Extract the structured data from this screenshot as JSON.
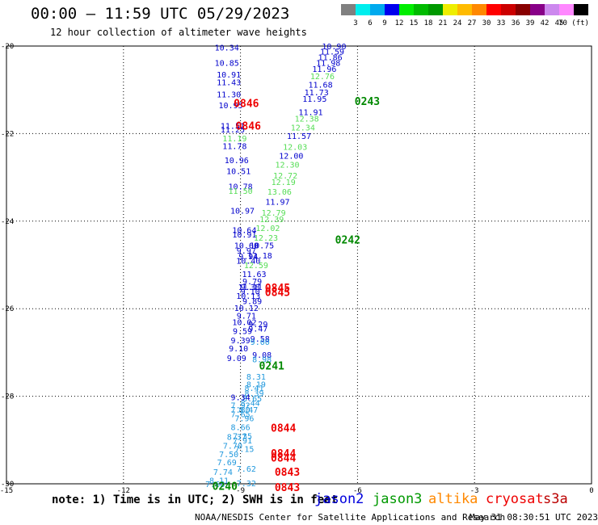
{
  "header": {
    "title": "00:00 – 11:59 UTC 05/29/2023",
    "subtitle": "12 hour collection of altimeter wave heights"
  },
  "colorbar": {
    "labels": [
      "3",
      "6",
      "9",
      "12",
      "15",
      "18",
      "21",
      "24",
      "27",
      "30",
      "33",
      "36",
      "39",
      "42",
      "45",
      "70 (ft)"
    ],
    "colors": [
      "#808080",
      "#00eeee",
      "#00aaee",
      "#0000ee",
      "#00ee00",
      "#00bb00",
      "#009900",
      "#eeee00",
      "#ffbb00",
      "#ff8800",
      "#ff0000",
      "#cc0000",
      "#880000",
      "#880088",
      "#cc88ee",
      "#ff88ff",
      "#000000"
    ]
  },
  "footer": {
    "note": "note: 1) Time is in UTC; 2) SWH is in feet",
    "missions": [
      {
        "name": "jason2",
        "color": "#0000dd"
      },
      {
        "name": "jason3",
        "color": "#009900"
      },
      {
        "name": "altika",
        "color": "#ff8800"
      },
      {
        "name": "cryosat",
        "color": "#ee0000"
      },
      {
        "name": "s3a",
        "color": "#bb0000"
      }
    ],
    "credit": "NOAA/NESDIS Center for Satellite Applications and Research",
    "timestamp": "May 31 08:30:51 UTC 2023"
  },
  "chart_data": {
    "type": "scatter",
    "xlim": [
      -15,
      0
    ],
    "ylim": [
      -30,
      -20
    ],
    "x_ticks": [
      "-15",
      "-12",
      "-9",
      "-6",
      "-3",
      "0"
    ],
    "y_ticks": [
      "-20",
      "-22",
      "-24",
      "-26",
      "-28",
      "-30"
    ],
    "grid": true,
    "colors": {
      "blue": "#0000cc",
      "green": "#55dd55",
      "cyan": "#2299dd",
      "darkgreen": "#008800",
      "red": "#ee0000"
    },
    "points": [
      {
        "x": -9.35,
        "y": -20.03,
        "label": "10.34",
        "color": "blue"
      },
      {
        "x": -9.35,
        "y": -20.38,
        "label": "10.85",
        "color": "blue"
      },
      {
        "x": -9.3,
        "y": -20.65,
        "label": "10.91",
        "color": "blue"
      },
      {
        "x": -9.3,
        "y": -20.82,
        "label": "11.43",
        "color": "blue"
      },
      {
        "x": -9.3,
        "y": -21.1,
        "label": "11.30",
        "color": "blue"
      },
      {
        "x": -9.25,
        "y": -21.35,
        "label": "10.95",
        "color": "blue"
      },
      {
        "x": -9.2,
        "y": -21.82,
        "label": "11.51",
        "color": "blue"
      },
      {
        "x": -9.2,
        "y": -21.9,
        "label": "11.25",
        "color": "blue"
      },
      {
        "x": -9.15,
        "y": -22.1,
        "label": "11.19",
        "color": "green"
      },
      {
        "x": -9.15,
        "y": -22.28,
        "label": "11.78",
        "color": "blue"
      },
      {
        "x": -9.1,
        "y": -22.6,
        "label": "10.96",
        "color": "blue"
      },
      {
        "x": -9.05,
        "y": -22.85,
        "label": "10.51",
        "color": "blue"
      },
      {
        "x": -9.0,
        "y": -23.2,
        "label": "10.78",
        "color": "blue"
      },
      {
        "x": -9.0,
        "y": -23.3,
        "label": "11.50",
        "color": "green"
      },
      {
        "x": -8.95,
        "y": -23.75,
        "label": "10.97",
        "color": "blue"
      },
      {
        "x": -8.9,
        "y": -24.2,
        "label": "10.64",
        "color": "blue"
      },
      {
        "x": -8.9,
        "y": -24.3,
        "label": "10.91",
        "color": "blue"
      },
      {
        "x": -8.85,
        "y": -24.55,
        "label": "10.60",
        "color": "blue"
      },
      {
        "x": -8.85,
        "y": -24.67,
        "label": "9.97",
        "color": "blue"
      },
      {
        "x": -8.8,
        "y": -24.8,
        "label": "9.94",
        "color": "blue"
      },
      {
        "x": -8.8,
        "y": -24.9,
        "label": "10.40",
        "color": "blue"
      },
      {
        "x": -8.75,
        "y": -25.5,
        "label": "9.38",
        "color": "blue"
      },
      {
        "x": -8.75,
        "y": -25.6,
        "label": "9.10",
        "color": "blue"
      },
      {
        "x": -8.7,
        "y": -25.82,
        "label": "9.89",
        "color": "blue"
      },
      {
        "x": -8.55,
        "y": -26.35,
        "label": "9.29",
        "color": "blue"
      },
      {
        "x": -8.55,
        "y": -26.45,
        "label": "9.47",
        "color": "blue"
      },
      {
        "x": -8.5,
        "y": -26.68,
        "label": "9.58",
        "color": "blue"
      },
      {
        "x": -8.5,
        "y": -26.75,
        "label": "9.00",
        "color": "cyan"
      },
      {
        "x": -8.45,
        "y": -27.05,
        "label": "9.08",
        "color": "blue"
      },
      {
        "x": -8.45,
        "y": -27.15,
        "label": "8.98",
        "color": "cyan"
      },
      {
        "x": -8.6,
        "y": -27.55,
        "label": "8.31",
        "color": "cyan"
      },
      {
        "x": -8.6,
        "y": -27.72,
        "label": "8.19",
        "color": "cyan"
      },
      {
        "x": -8.65,
        "y": -27.8,
        "label": "8.41",
        "color": "cyan"
      },
      {
        "x": -8.65,
        "y": -27.92,
        "label": "8.39",
        "color": "cyan"
      },
      {
        "x": -8.7,
        "y": -28.04,
        "label": "8.65",
        "color": "cyan"
      },
      {
        "x": -8.75,
        "y": -28.15,
        "label": "8.44",
        "color": "cyan"
      },
      {
        "x": -8.8,
        "y": -28.3,
        "label": "8.47",
        "color": "cyan"
      },
      {
        "x": -8.9,
        "y": -28.5,
        "label": "7.96",
        "color": "cyan"
      },
      {
        "x": -9.0,
        "y": -28.7,
        "label": "8.66",
        "color": "cyan"
      },
      {
        "x": -9.1,
        "y": -28.92,
        "label": "8.37",
        "color": "cyan"
      },
      {
        "x": -9.2,
        "y": -29.12,
        "label": "7.70",
        "color": "cyan"
      },
      {
        "x": -9.3,
        "y": -29.32,
        "label": "7.50",
        "color": "cyan"
      },
      {
        "x": -9.35,
        "y": -29.5,
        "label": "7.69",
        "color": "cyan"
      },
      {
        "x": -9.45,
        "y": -29.72,
        "label": "7.74",
        "color": "cyan"
      },
      {
        "x": -9.55,
        "y": -29.92,
        "label": "8.11",
        "color": "cyan"
      },
      {
        "x": -9.65,
        "y": -30.0,
        "label": "7.68",
        "color": "cyan"
      },
      {
        "x": -6.6,
        "y": -20.0,
        "label": "10.90",
        "color": "blue"
      },
      {
        "x": -6.65,
        "y": -20.12,
        "label": "11.59",
        "color": "blue"
      },
      {
        "x": -6.7,
        "y": -20.25,
        "label": "11.86",
        "color": "blue"
      },
      {
        "x": -6.75,
        "y": -20.38,
        "label": "11.98",
        "color": "blue"
      },
      {
        "x": -6.85,
        "y": -20.52,
        "label": "11.96",
        "color": "blue"
      },
      {
        "x": -6.9,
        "y": -20.68,
        "label": "12.76",
        "color": "green"
      },
      {
        "x": -6.95,
        "y": -20.88,
        "label": "11.68",
        "color": "blue"
      },
      {
        "x": -7.05,
        "y": -21.05,
        "label": "11.73",
        "color": "blue"
      },
      {
        "x": -7.1,
        "y": -21.2,
        "label": "11.95",
        "color": "blue"
      },
      {
        "x": -7.2,
        "y": -21.5,
        "label": "11.91",
        "color": "blue"
      },
      {
        "x": -7.3,
        "y": -21.65,
        "label": "12.38",
        "color": "green"
      },
      {
        "x": -7.4,
        "y": -21.85,
        "label": "12.34",
        "color": "green"
      },
      {
        "x": -7.5,
        "y": -22.05,
        "label": "11.57",
        "color": "blue"
      },
      {
        "x": -7.6,
        "y": -22.3,
        "label": "12.03",
        "color": "green"
      },
      {
        "x": -7.7,
        "y": -22.5,
        "label": "12.00",
        "color": "blue"
      },
      {
        "x": -7.8,
        "y": -22.7,
        "label": "12.30",
        "color": "green"
      },
      {
        "x": -7.85,
        "y": -22.95,
        "label": "12.72",
        "color": "green"
      },
      {
        "x": -7.9,
        "y": -23.1,
        "label": "12.19",
        "color": "green"
      },
      {
        "x": -8.0,
        "y": -23.32,
        "label": "13.06",
        "color": "green"
      },
      {
        "x": -8.05,
        "y": -23.55,
        "label": "11.97",
        "color": "blue"
      },
      {
        "x": -8.15,
        "y": -23.8,
        "label": "12.79",
        "color": "green"
      },
      {
        "x": -8.2,
        "y": -23.95,
        "label": "12.39",
        "color": "green"
      },
      {
        "x": -8.3,
        "y": -24.15,
        "label": "12.02",
        "color": "green"
      },
      {
        "x": -8.35,
        "y": -24.37,
        "label": "12.23",
        "color": "green"
      },
      {
        "x": -8.45,
        "y": -24.55,
        "label": "10.75",
        "color": "blue"
      },
      {
        "x": -8.5,
        "y": -24.78,
        "label": "11.18",
        "color": "blue"
      },
      {
        "x": -8.6,
        "y": -25.0,
        "label": "12.59",
        "color": "green"
      },
      {
        "x": -8.65,
        "y": -25.2,
        "label": "11.63",
        "color": "blue"
      },
      {
        "x": -8.7,
        "y": -25.37,
        "label": "9.79",
        "color": "blue"
      },
      {
        "x": -8.75,
        "y": -25.5,
        "label": "11.11",
        "color": "blue"
      },
      {
        "x": -8.8,
        "y": -25.7,
        "label": "10.13",
        "color": "blue"
      },
      {
        "x": -8.85,
        "y": -25.98,
        "label": "10.12",
        "color": "blue"
      },
      {
        "x": -8.85,
        "y": -26.15,
        "label": "9.71",
        "color": "blue"
      },
      {
        "x": -8.9,
        "y": -26.3,
        "label": "10.02",
        "color": "blue"
      },
      {
        "x": -8.95,
        "y": -26.5,
        "label": "9.59",
        "color": "blue"
      },
      {
        "x": -9.0,
        "y": -26.72,
        "label": "9.39",
        "color": "blue"
      },
      {
        "x": -9.05,
        "y": -26.9,
        "label": "9.10",
        "color": "blue"
      },
      {
        "x": -9.1,
        "y": -27.12,
        "label": "9.09",
        "color": "blue"
      },
      {
        "x": -9.0,
        "y": -28.02,
        "label": "9.34",
        "color": "blue"
      },
      {
        "x": -9.0,
        "y": -28.2,
        "label": "7.92",
        "color": "cyan"
      },
      {
        "x": -9.0,
        "y": -28.3,
        "label": "7.80",
        "color": "cyan"
      },
      {
        "x": -9.0,
        "y": -28.4,
        "label": "7.65",
        "color": "cyan"
      },
      {
        "x": -8.95,
        "y": -28.9,
        "label": "7.35",
        "color": "cyan"
      },
      {
        "x": -8.95,
        "y": -29.0,
        "label": "7.91",
        "color": "cyan"
      },
      {
        "x": -8.9,
        "y": -29.2,
        "label": "7.15",
        "color": "cyan"
      },
      {
        "x": -8.85,
        "y": -29.65,
        "label": "7.62",
        "color": "cyan"
      },
      {
        "x": -8.85,
        "y": -29.98,
        "label": "7.32",
        "color": "cyan"
      }
    ],
    "times": [
      {
        "x": -8.85,
        "y": -21.3,
        "label": "0846",
        "color": "red"
      },
      {
        "x": -8.8,
        "y": -21.82,
        "label": "0846",
        "color": "red"
      },
      {
        "x": -5.75,
        "y": -21.25,
        "label": "0243",
        "color": "darkgreen"
      },
      {
        "x": -6.25,
        "y": -24.42,
        "label": "0242",
        "color": "darkgreen"
      },
      {
        "x": -8.05,
        "y": -25.52,
        "label": "0845",
        "color": "red"
      },
      {
        "x": -8.05,
        "y": -25.62,
        "label": "0845",
        "color": "red"
      },
      {
        "x": -8.2,
        "y": -27.3,
        "label": "0241",
        "color": "darkgreen"
      },
      {
        "x": -7.9,
        "y": -28.72,
        "label": "0844",
        "color": "red"
      },
      {
        "x": -7.9,
        "y": -29.3,
        "label": "0844",
        "color": "red"
      },
      {
        "x": -7.9,
        "y": -29.4,
        "label": "0844",
        "color": "red"
      },
      {
        "x": -7.8,
        "y": -29.72,
        "label": "0843",
        "color": "red"
      },
      {
        "x": -7.8,
        "y": -30.07,
        "label": "0843",
        "color": "red"
      },
      {
        "x": -9.4,
        "y": -30.05,
        "label": "0240",
        "color": "darkgreen"
      }
    ]
  }
}
